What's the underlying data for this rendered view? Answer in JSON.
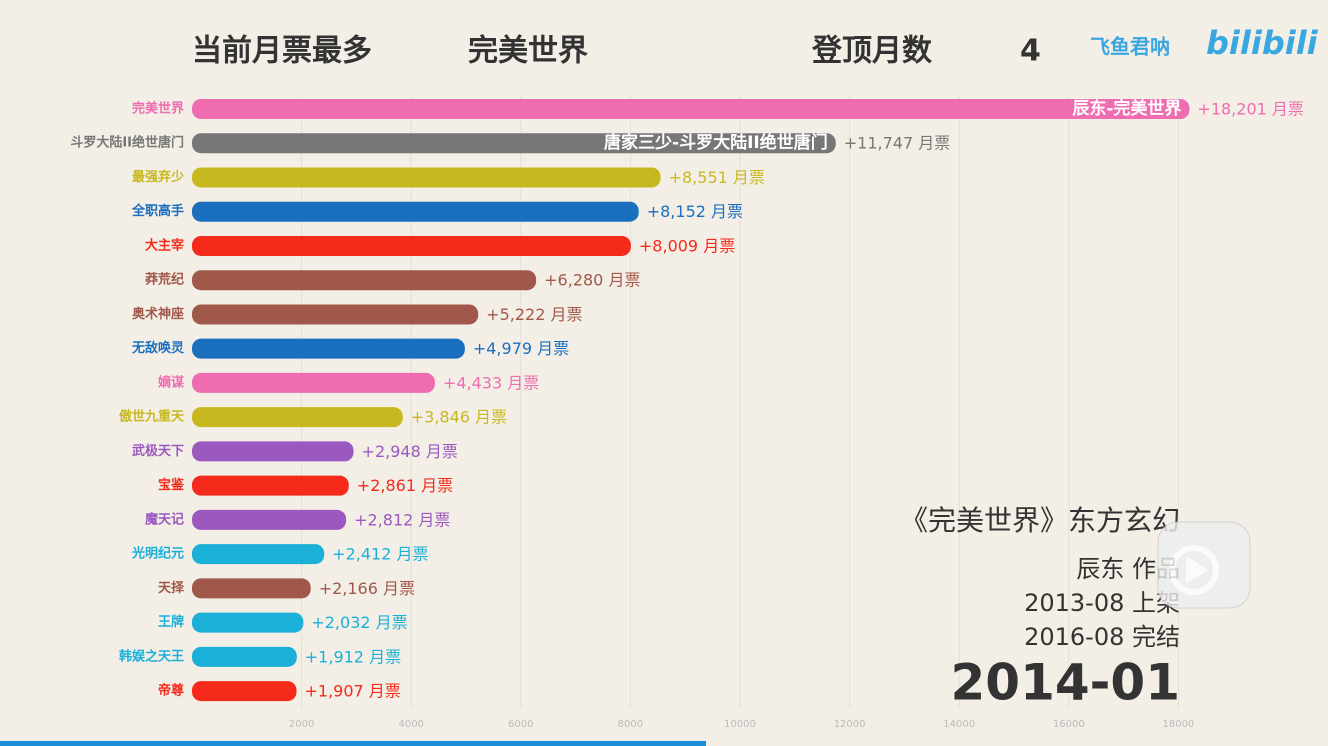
{
  "header": {
    "label": "当前月票最多",
    "leader": "完美世界",
    "months_label": "登顶月数",
    "months": 4
  },
  "logo": {
    "author": "飞鱼君呐",
    "site": "bilibili"
  },
  "info": {
    "title": "《完美世界》东方玄幻",
    "author": "辰东 作品",
    "start": "2013-08 上架",
    "end": "2016-08 完结",
    "date": "2014-01"
  },
  "chart_data": {
    "type": "bar",
    "orientation": "horizontal",
    "categories": [
      "完美世界",
      "斗罗大陆II绝世唐门",
      "最强弃少",
      "全职高手",
      "大主宰",
      "莽荒纪",
      "奥术神座",
      "无敌唤灵",
      "嫡谋",
      "傲世九重天",
      "武极天下",
      "宝鉴",
      "魔天记",
      "光明纪元",
      "天择",
      "王牌",
      "韩娱之天王",
      "帝尊"
    ],
    "values": [
      18201,
      11747,
      8551,
      8152,
      8009,
      6280,
      5222,
      4979,
      4433,
      3846,
      2948,
      2861,
      2812,
      2412,
      2166,
      2032,
      1912,
      1907
    ],
    "value_labels": [
      "+18,201 月票",
      "+11,747 月票",
      "+8,551 月票",
      "+8,152 月票",
      "+8,009 月票",
      "+6,280 月票",
      "+5,222 月票",
      "+4,979 月票",
      "+4,433 月票",
      "+3,846 月票",
      "+2,948 月票",
      "+2,861 月票",
      "+2,812 月票",
      "+2,412 月票",
      "+2,166 月票",
      "+2,032 月票",
      "+1,912 月票",
      "+1,907 月票"
    ],
    "colors": [
      "#f06cb0",
      "#777777",
      "#c8b820",
      "#1a6fbf",
      "#f52a1a",
      "#a0584a",
      "#a0584a",
      "#1a6fbf",
      "#f06cb0",
      "#c8b820",
      "#9b59c0",
      "#f52a1a",
      "#9b59c0",
      "#1ab0d8",
      "#a0584a",
      "#1ab0d8",
      "#1ab0d8",
      "#f52a1a"
    ],
    "inner_labels": [
      "辰东-完美世界",
      "唐家三少-斗罗大陆II绝世唐门"
    ],
    "xlim": [
      0,
      20000
    ],
    "xticks": [
      2000,
      4000,
      6000,
      8000,
      10000,
      12000,
      14000,
      16000,
      18000
    ],
    "grid": true
  }
}
